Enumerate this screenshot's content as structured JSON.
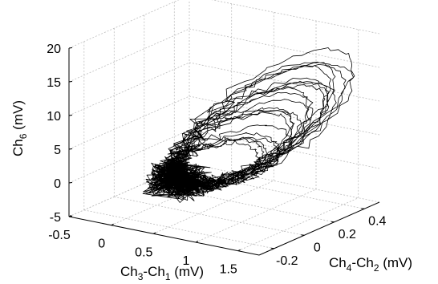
{
  "chart_data": {
    "type": "line",
    "projection": "3d",
    "xlabel": {
      "base": "Ch",
      "sub1": "3",
      "mid": "-Ch",
      "sub2": "1",
      "unit": " (mV)"
    },
    "ylabel": {
      "base": "Ch",
      "sub1": "4",
      "mid": "-Ch",
      "sub2": "2",
      "unit": " (mV)"
    },
    "zlabel": {
      "base": "Ch",
      "sub1": "6",
      "unit": " (mV)"
    },
    "xlim": [
      -0.5,
      1.75
    ],
    "ylim": [
      -0.3,
      0.5
    ],
    "zlim": [
      -5,
      20
    ],
    "xticks": [
      {
        "value": -0.5,
        "label": "-0.5"
      },
      {
        "value": 0,
        "label": "0"
      },
      {
        "value": 0.5,
        "label": "0.5"
      },
      {
        "value": 1,
        "label": "1"
      },
      {
        "value": 1.5,
        "label": "1.5"
      }
    ],
    "yticks": [
      {
        "value": -0.2,
        "label": "-0.2"
      },
      {
        "value": 0,
        "label": "0"
      },
      {
        "value": 0.2,
        "label": "0.2"
      },
      {
        "value": 0.4,
        "label": "0.4"
      }
    ],
    "zticks": [
      {
        "value": -5,
        "label": "-5"
      },
      {
        "value": 0,
        "label": "0"
      },
      {
        "value": 5,
        "label": "5"
      },
      {
        "value": 10,
        "label": "10"
      },
      {
        "value": 15,
        "label": "15"
      },
      {
        "value": 20,
        "label": "20"
      }
    ],
    "grid": true,
    "trajectory": {
      "loops": 22,
      "baseline_point": [
        0.35,
        -0.05,
        0.2
      ],
      "outer_loop_peak": [
        1.6,
        0.38,
        16.5
      ],
      "inner_loop_peak": [
        1.2,
        0.0,
        6.5
      ],
      "noise_cluster_center": [
        0.35,
        -0.05,
        0.2
      ]
    }
  }
}
